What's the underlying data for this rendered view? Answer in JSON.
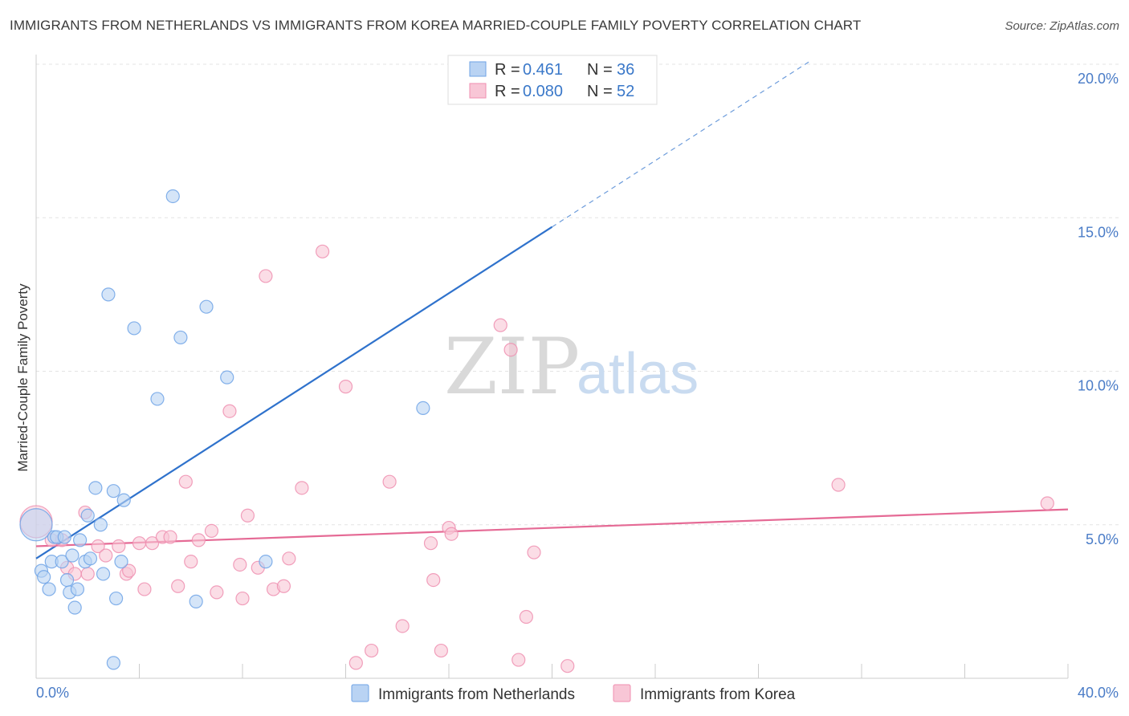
{
  "header": {
    "title": "IMMIGRANTS FROM NETHERLANDS VS IMMIGRANTS FROM KOREA MARRIED-COUPLE FAMILY POVERTY CORRELATION CHART",
    "source": "Source: ZipAtlas.com"
  },
  "watermark": {
    "zip": "ZIP",
    "atlas": "atlas"
  },
  "chart_data": {
    "type": "scatter",
    "title": "IMMIGRANTS FROM NETHERLANDS VS IMMIGRANTS FROM KOREA MARRIED-COUPLE FAMILY POVERTY CORRELATION CHART",
    "xlabel": "",
    "ylabel": "Married-Couple Family Poverty",
    "xlim": [
      0,
      40
    ],
    "ylim": [
      0,
      20
    ],
    "x_tick_labels": [
      "0.0%",
      "40.0%"
    ],
    "y_ticks": [
      {
        "value": 5,
        "label": "5.0%"
      },
      {
        "value": 10,
        "label": "10.0%"
      },
      {
        "value": 15,
        "label": "15.0%"
      },
      {
        "value": 20,
        "label": "20.0%"
      }
    ],
    "legend": {
      "rows": [
        {
          "r_label": "R =",
          "r_value": "0.461",
          "n_label": "N =",
          "n_value": "36"
        },
        {
          "r_label": "R =",
          "r_value": "0.080",
          "n_label": "N =",
          "n_value": "52"
        }
      ]
    },
    "series": [
      {
        "name": "Immigrants from Netherlands",
        "color": "#6fa3e6",
        "fill": "#b9d3f3",
        "line_color": "#2f72cc",
        "trend": {
          "x0": 0,
          "y0": 3.9,
          "x1": 20,
          "y1": 14.7,
          "dash_to_x": 30,
          "dash_to_y": 20.1
        },
        "points": [
          [
            0.0,
            5.0
          ],
          [
            0.2,
            3.5
          ],
          [
            0.3,
            3.3
          ],
          [
            0.5,
            2.9
          ],
          [
            0.6,
            3.8
          ],
          [
            0.7,
            4.6
          ],
          [
            0.8,
            4.6
          ],
          [
            1.0,
            3.8
          ],
          [
            1.1,
            4.6
          ],
          [
            1.2,
            3.2
          ],
          [
            1.3,
            2.8
          ],
          [
            1.4,
            4.0
          ],
          [
            1.5,
            2.3
          ],
          [
            1.6,
            2.9
          ],
          [
            1.7,
            4.5
          ],
          [
            1.9,
            3.8
          ],
          [
            2.0,
            5.3
          ],
          [
            2.1,
            3.9
          ],
          [
            2.3,
            6.2
          ],
          [
            2.5,
            5.0
          ],
          [
            2.6,
            3.4
          ],
          [
            2.8,
            12.5
          ],
          [
            3.0,
            0.5
          ],
          [
            3.0,
            6.1
          ],
          [
            3.1,
            2.6
          ],
          [
            3.3,
            3.8
          ],
          [
            3.4,
            5.8
          ],
          [
            3.8,
            11.4
          ],
          [
            4.7,
            9.1
          ],
          [
            5.3,
            15.7
          ],
          [
            5.6,
            11.1
          ],
          [
            6.2,
            2.5
          ],
          [
            6.6,
            12.1
          ],
          [
            7.4,
            9.8
          ],
          [
            8.9,
            3.8
          ],
          [
            15.0,
            8.8
          ]
        ]
      },
      {
        "name": "Immigrants from Korea",
        "color": "#ef8fb0",
        "fill": "#f8c6d6",
        "line_color": "#e56a95",
        "trend": {
          "x0": 0,
          "y0": 4.3,
          "x1": 40,
          "y1": 5.5
        },
        "points": [
          [
            0.0,
            5.1
          ],
          [
            0.6,
            4.5
          ],
          [
            1.0,
            4.5
          ],
          [
            1.2,
            3.6
          ],
          [
            1.5,
            3.4
          ],
          [
            1.9,
            5.4
          ],
          [
            2.0,
            3.4
          ],
          [
            2.4,
            4.3
          ],
          [
            2.7,
            4.0
          ],
          [
            3.2,
            4.3
          ],
          [
            3.5,
            3.4
          ],
          [
            3.6,
            3.5
          ],
          [
            4.0,
            4.4
          ],
          [
            4.2,
            2.9
          ],
          [
            4.5,
            4.4
          ],
          [
            4.9,
            4.6
          ],
          [
            5.2,
            4.6
          ],
          [
            5.5,
            3.0
          ],
          [
            5.8,
            6.4
          ],
          [
            6.0,
            3.8
          ],
          [
            6.3,
            4.5
          ],
          [
            6.8,
            4.8
          ],
          [
            7.0,
            2.8
          ],
          [
            7.5,
            8.7
          ],
          [
            7.9,
            3.7
          ],
          [
            8.0,
            2.6
          ],
          [
            8.2,
            5.3
          ],
          [
            8.6,
            3.6
          ],
          [
            8.9,
            13.1
          ],
          [
            9.2,
            2.9
          ],
          [
            9.6,
            3.0
          ],
          [
            9.8,
            3.9
          ],
          [
            10.3,
            6.2
          ],
          [
            11.1,
            13.9
          ],
          [
            12.0,
            9.5
          ],
          [
            12.4,
            0.5
          ],
          [
            13.0,
            0.9
          ],
          [
            13.7,
            6.4
          ],
          [
            14.2,
            1.7
          ],
          [
            15.3,
            4.4
          ],
          [
            15.4,
            3.2
          ],
          [
            15.7,
            0.9
          ],
          [
            16.0,
            4.9
          ],
          [
            16.1,
            4.7
          ],
          [
            18.0,
            11.5
          ],
          [
            18.4,
            10.7
          ],
          [
            18.7,
            0.6
          ],
          [
            19.0,
            2.0
          ],
          [
            19.3,
            4.1
          ],
          [
            20.6,
            0.4
          ],
          [
            31.1,
            6.3
          ],
          [
            39.2,
            5.7
          ]
        ]
      }
    ]
  }
}
